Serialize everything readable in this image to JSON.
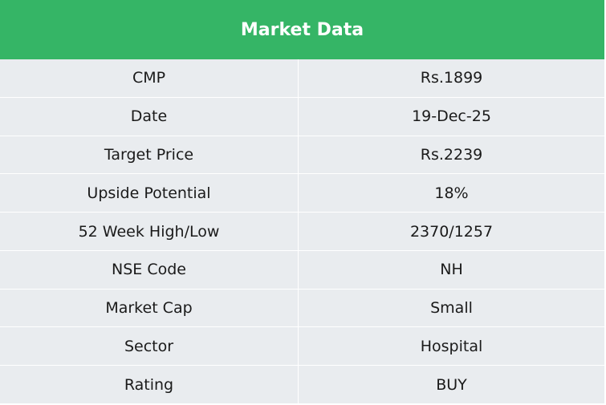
{
  "table": {
    "title": "Market Data",
    "rows": [
      {
        "label": "CMP",
        "value": "Rs.1899"
      },
      {
        "label": "Date",
        "value": "19-Dec-25"
      },
      {
        "label": "Target Price",
        "value": "Rs.2239"
      },
      {
        "label": "Upside Potential",
        "value": "18%"
      },
      {
        "label": "52 Week High/Low",
        "value": "2370/1257"
      },
      {
        "label": "NSE Code",
        "value": "NH"
      },
      {
        "label": "Market Cap",
        "value": "Small"
      },
      {
        "label": "Sector",
        "value": "Hospital"
      },
      {
        "label": "Rating",
        "value": "BUY"
      }
    ]
  },
  "colors": {
    "header_bg": "#35b566",
    "row_bg": "#e9ecef",
    "header_text": "#ffffff",
    "body_text": "#1a1a1a"
  }
}
